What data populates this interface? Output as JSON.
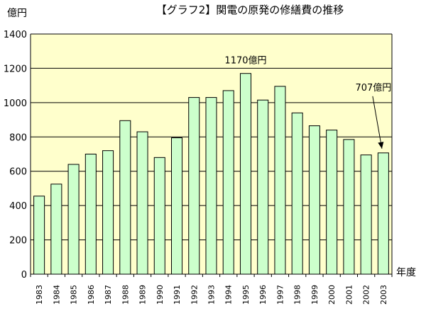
{
  "chart_data": {
    "type": "bar",
    "title": "【グラフ2】関電の原発の修繕費の推移",
    "ylabel": "億円",
    "xlabel": "年度",
    "ylim": [
      0,
      1400
    ],
    "yticks": [
      0,
      200,
      400,
      600,
      800,
      1000,
      1200,
      1400
    ],
    "grid": true,
    "plot_background": "#ffffcc",
    "bar_color": "#ccffcc",
    "categories": [
      "1983",
      "1984",
      "1985",
      "1986",
      "1987",
      "1988",
      "1989",
      "1990",
      "1991",
      "1992",
      "1993",
      "1994",
      "1995",
      "1996",
      "1997",
      "1998",
      "1999",
      "2000",
      "2001",
      "2002",
      "2003"
    ],
    "values": [
      455,
      525,
      640,
      700,
      720,
      895,
      830,
      680,
      795,
      1030,
      1030,
      1070,
      1170,
      1015,
      1095,
      940,
      865,
      840,
      785,
      695,
      707
    ],
    "annotations": [
      {
        "text": "1170億円",
        "category": "1995",
        "arrow": false
      },
      {
        "text": "707億円",
        "category": "2003",
        "arrow": true
      }
    ]
  }
}
